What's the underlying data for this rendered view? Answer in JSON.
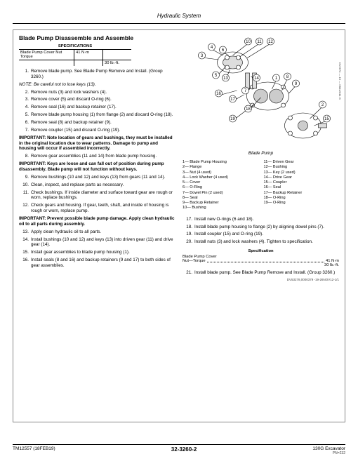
{
  "doc": {
    "section_title": "Hydraulic System",
    "heading": "Blade Pump Disassemble and Assemble",
    "spec_box": {
      "title": "SPECIFICATIONS",
      "label": "Blade Pump Cover Nut Torque",
      "v1": "41 N·m",
      "v2": "30 lb.-ft."
    },
    "left_seq": [
      {
        "type": "step",
        "n": "1.",
        "t": "Remove blade pump. See Blade Pump Remove and Install. (Group 3260.)"
      },
      {
        "type": "note",
        "t": "NOTE: Be careful not to lose keys (13)."
      },
      {
        "type": "step",
        "n": "2.",
        "t": "Remove nuts (3) and lock washers (4)."
      },
      {
        "type": "step",
        "n": "3.",
        "t": "Remove cover (5) and discard O-ring (6)."
      },
      {
        "type": "step",
        "n": "4.",
        "t": "Remove seal (16) and backup retainer (17)."
      },
      {
        "type": "step",
        "n": "5.",
        "t": "Remove blade pump housing (1) from flange (2) and discard O-ring (18)."
      },
      {
        "type": "step",
        "n": "6.",
        "t": "Remove seal (8) and backup retainer (9)."
      },
      {
        "type": "step",
        "n": "7.",
        "t": "Remove coupler (15) and discard O-ring (19)."
      },
      {
        "type": "imp",
        "t": "Note location of gears and bushings, they must be installed in the original location due to wear patterns. Damage to pump and housing will occur if assembled incorrectly."
      },
      {
        "type": "step",
        "n": "8.",
        "t": "Remove gear assemblies (11 and 14) from blade pump housing."
      },
      {
        "type": "imp",
        "t": "Keys are loose and can fall out of position during pump disassembly. Blade pump will not function without keys."
      },
      {
        "type": "step",
        "n": "9.",
        "t": "Remove bushings (10 and 12) and keys (13) from gears (11 and 14)."
      },
      {
        "type": "step",
        "n": "10.",
        "t": "Clean, inspect, and replace parts as necessary."
      },
      {
        "type": "step",
        "n": "11.",
        "t": "Check bushings. If inside diameter and surface toward gear are rough or worn, replace bushings."
      },
      {
        "type": "step",
        "n": "12.",
        "t": "Check gears and housing. If gear, teeth, shaft, and inside of housing is rough or worn, replace pump."
      },
      {
        "type": "imp",
        "t": "Prevent possible blade pump damage. Apply clean hydraulic oil to all parts during assembly."
      },
      {
        "type": "step",
        "n": "13.",
        "t": "Apply clean hydraulic oil to all parts."
      },
      {
        "type": "step",
        "n": "14.",
        "t": "Install bushings (10 and 12) and keys (13) into driven gear (11) and drive gear (14)."
      },
      {
        "type": "step",
        "n": "15.",
        "t": "Install gear assemblies to blade pump housing (1)."
      },
      {
        "type": "step",
        "n": "16.",
        "t": "Install seals (8 and 16) and backup retainers (9 and 17) to both sides of gear assemblies."
      }
    ],
    "diagram": {
      "caption": "Blade Pump",
      "side_caption": "DV2674 — 19 — 06AUG11 G",
      "callouts": [
        "10",
        "11",
        "12",
        "13",
        "14",
        "18",
        "19",
        "15",
        "1",
        "2",
        "3",
        "4",
        "5",
        "6",
        "7",
        "8",
        "9",
        "16",
        "17"
      ]
    },
    "parts_left": [
      "1— Blade Pump Housing",
      "2— Flange",
      "3— Nut (4 used)",
      "4— Lock Washer (4 used)",
      "5— Cover",
      "6— O-Ring",
      "7— Dowel Pin (2 used)",
      "8— Seal",
      "9— Backup Retainer",
      "10— Bushing"
    ],
    "parts_right": [
      "11— Driven Gear",
      "12— Bushing",
      "13— Key (2 used)",
      "14— Drive Gear",
      "15— Coupler",
      "16— Seal",
      "17— Backup Retainer",
      "18— O-Ring",
      "19— O-Ring"
    ],
    "right_seq": [
      {
        "type": "step",
        "n": "17.",
        "t": "Install new O-rings (6 and 18)."
      },
      {
        "type": "step",
        "n": "18.",
        "t": "Install blade pump housing to flange (2) by aligning dowel pins (7)."
      },
      {
        "type": "step",
        "n": "19.",
        "t": "Install coupler (15) and O-ring (19)."
      },
      {
        "type": "step",
        "n": "20.",
        "t": "Install nuts (3) and lock washers (4). Tighten to specification."
      }
    ],
    "spec2": {
      "title": "Specification",
      "item": "Blade Pump Cover",
      "row_label": "Nut—Torque",
      "row_val1": "41 N·m",
      "row_val2": "30 lb.-ft."
    },
    "right_seq2": [
      {
        "type": "step",
        "n": "21.",
        "t": "Install blade pump. See Blade Pump Remove and Install. (Group 3260.)"
      }
    ],
    "tiny_code": "DV53278,0000379 -19-26NOV12-1/1",
    "footer": {
      "left": "TM12557 (18FEB19)",
      "center": "32-3260-2",
      "right": "130G Excavator",
      "pn": "PN=232"
    },
    "important_label": "IMPORTANT: "
  }
}
